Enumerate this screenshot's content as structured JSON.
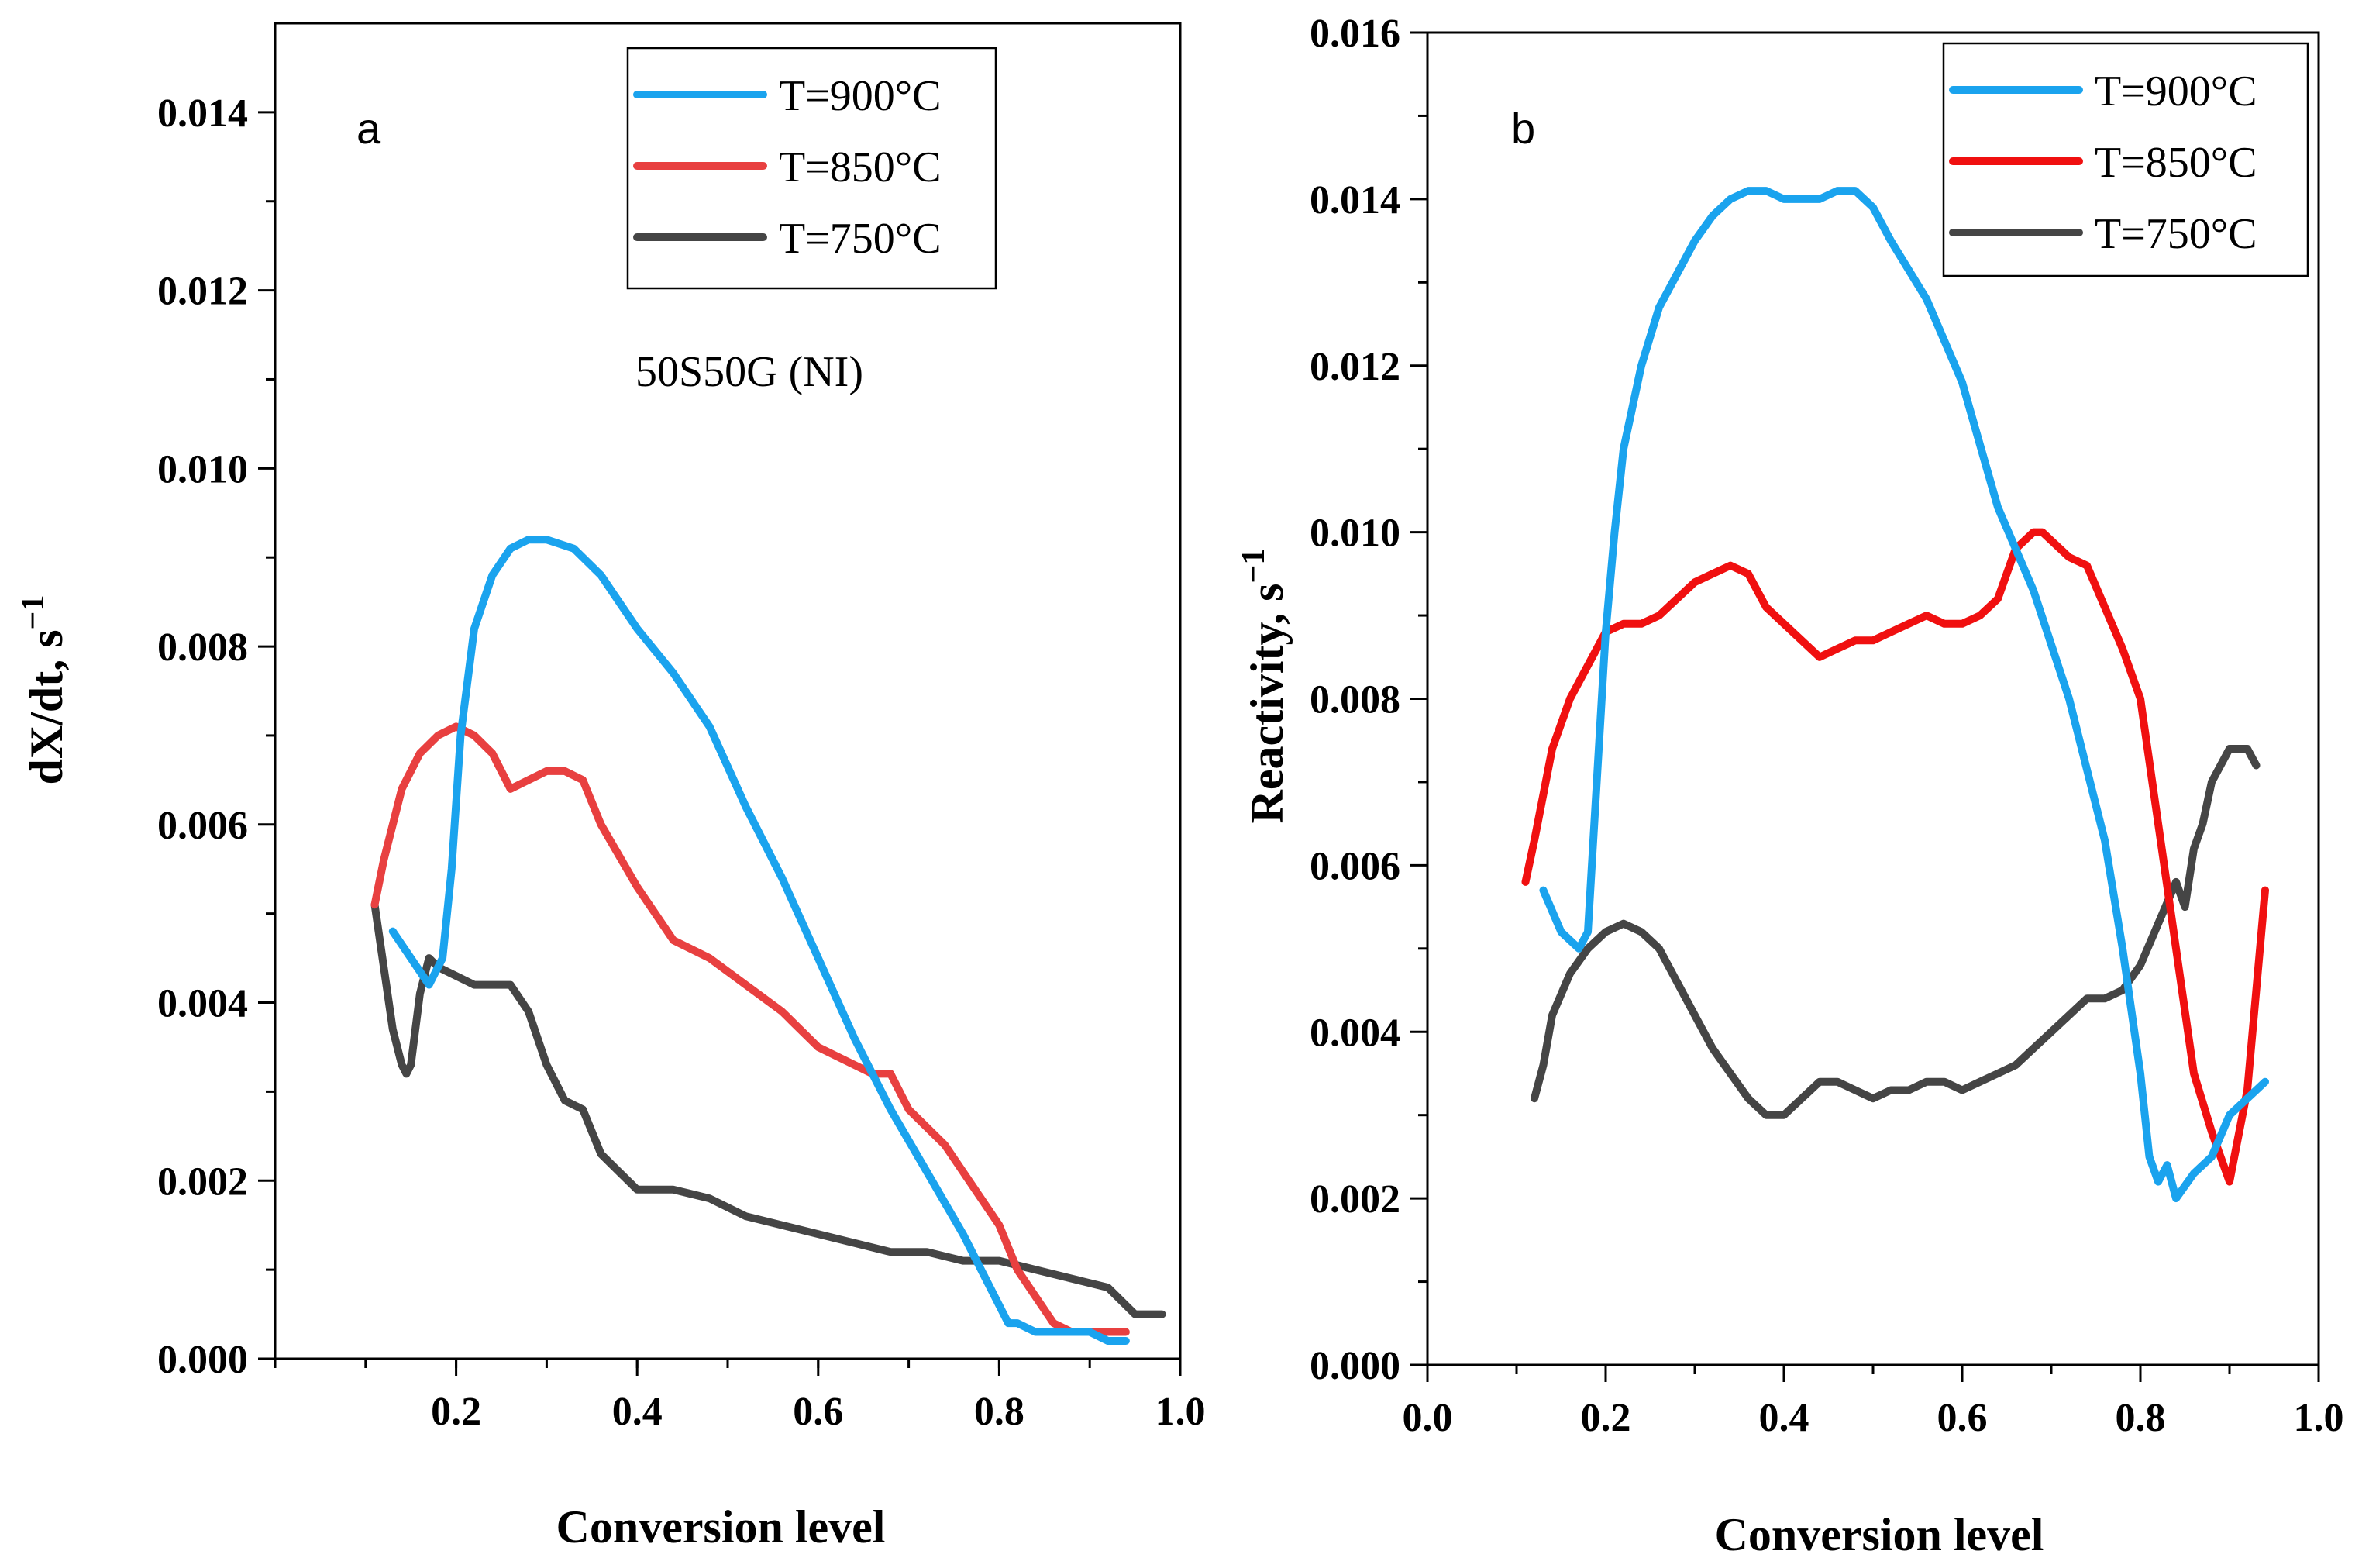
{
  "chart_data": [
    {
      "type": "line",
      "panel_label": "a",
      "annotation": "50S50G (NI)",
      "xlabel": "Conversion level",
      "ylabel": "dX/dt, s",
      "ylabel_sup": "−1",
      "xlim": [
        0.0,
        1.0
      ],
      "ylim": [
        0.0,
        0.015
      ],
      "xticks": [
        0.2,
        0.4,
        0.6,
        0.8,
        1.0
      ],
      "xtick_labels": [
        "0.2",
        "0.4",
        "0.6",
        "0.8",
        "1.0"
      ],
      "yticks": [
        0.0,
        0.002,
        0.004,
        0.006,
        0.008,
        0.01,
        0.012,
        0.014
      ],
      "ytick_labels": [
        "0.000",
        "0.002",
        "0.004",
        "0.006",
        "0.008",
        "0.010",
        "0.012",
        "0.014"
      ],
      "legend_position": "top-right",
      "series": [
        {
          "name": "T=900°C",
          "color": "#1aa3ee",
          "x": [
            0.13,
            0.15,
            0.17,
            0.185,
            0.195,
            0.205,
            0.22,
            0.24,
            0.26,
            0.28,
            0.3,
            0.33,
            0.36,
            0.4,
            0.44,
            0.48,
            0.52,
            0.56,
            0.6,
            0.64,
            0.68,
            0.72,
            0.76,
            0.78,
            0.8,
            0.81,
            0.82,
            0.84,
            0.86,
            0.88,
            0.9,
            0.92,
            0.94
          ],
          "y": [
            0.0048,
            0.0045,
            0.0042,
            0.0045,
            0.0055,
            0.007,
            0.0082,
            0.0088,
            0.0091,
            0.0092,
            0.0092,
            0.0091,
            0.0088,
            0.0082,
            0.0077,
            0.0071,
            0.0062,
            0.0054,
            0.0045,
            0.0036,
            0.0028,
            0.0021,
            0.0014,
            0.001,
            0.0006,
            0.0004,
            0.0004,
            0.0003,
            0.0003,
            0.0003,
            0.0003,
            0.0002,
            0.0002
          ]
        },
        {
          "name": "T=850°C",
          "color": "#e84040",
          "x": [
            0.11,
            0.12,
            0.14,
            0.16,
            0.18,
            0.2,
            0.22,
            0.24,
            0.26,
            0.28,
            0.3,
            0.32,
            0.34,
            0.36,
            0.4,
            0.44,
            0.48,
            0.52,
            0.56,
            0.6,
            0.64,
            0.66,
            0.68,
            0.7,
            0.74,
            0.78,
            0.8,
            0.82,
            0.84,
            0.86,
            0.88,
            0.9,
            0.92,
            0.94
          ],
          "y": [
            0.0051,
            0.0056,
            0.0064,
            0.0068,
            0.007,
            0.0071,
            0.007,
            0.0068,
            0.0064,
            0.0065,
            0.0066,
            0.0066,
            0.0065,
            0.006,
            0.0053,
            0.0047,
            0.0045,
            0.0042,
            0.0039,
            0.0035,
            0.0033,
            0.0032,
            0.0032,
            0.0028,
            0.0024,
            0.0018,
            0.0015,
            0.001,
            0.0007,
            0.0004,
            0.0003,
            0.0003,
            0.0003,
            0.0003
          ]
        },
        {
          "name": "T=750°C",
          "color": "#454545",
          "x": [
            0.11,
            0.12,
            0.13,
            0.14,
            0.145,
            0.15,
            0.16,
            0.17,
            0.18,
            0.2,
            0.22,
            0.24,
            0.26,
            0.28,
            0.3,
            0.32,
            0.34,
            0.36,
            0.38,
            0.4,
            0.44,
            0.48,
            0.52,
            0.56,
            0.6,
            0.64,
            0.68,
            0.72,
            0.76,
            0.8,
            0.84,
            0.88,
            0.92,
            0.95,
            0.98
          ],
          "y": [
            0.0051,
            0.0044,
            0.0037,
            0.0033,
            0.0032,
            0.0033,
            0.0041,
            0.0045,
            0.0044,
            0.0043,
            0.0042,
            0.0042,
            0.0042,
            0.0039,
            0.0033,
            0.0029,
            0.0028,
            0.0023,
            0.0021,
            0.0019,
            0.0019,
            0.0018,
            0.0016,
            0.0015,
            0.0014,
            0.0013,
            0.0012,
            0.0012,
            0.0011,
            0.0011,
            0.001,
            0.0009,
            0.0008,
            0.0005,
            0.0005
          ]
        }
      ]
    },
    {
      "type": "line",
      "panel_label": "b",
      "xlabel": "Conversion level",
      "ylabel": "Reactivity, s",
      "ylabel_sup": "−1",
      "xlim": [
        0.0,
        1.0
      ],
      "ylim": [
        0.0,
        0.016
      ],
      "xticks": [
        0.0,
        0.2,
        0.4,
        0.6,
        0.8,
        1.0
      ],
      "xtick_labels": [
        "0.0",
        "0.2",
        "0.4",
        "0.6",
        "0.8",
        "1.0"
      ],
      "yticks": [
        0.0,
        0.002,
        0.004,
        0.006,
        0.008,
        0.01,
        0.012,
        0.014,
        0.016
      ],
      "ytick_labels": [
        "0.000",
        "0.002",
        "0.004",
        "0.006",
        "0.008",
        "0.010",
        "0.012",
        "0.014",
        "0.016"
      ],
      "legend_position": "top-right",
      "series": [
        {
          "name": "T=900°C",
          "color": "#1aa3ee",
          "x": [
            0.13,
            0.15,
            0.17,
            0.18,
            0.19,
            0.2,
            0.21,
            0.22,
            0.24,
            0.26,
            0.28,
            0.3,
            0.32,
            0.34,
            0.36,
            0.38,
            0.4,
            0.42,
            0.44,
            0.46,
            0.48,
            0.5,
            0.52,
            0.56,
            0.6,
            0.64,
            0.68,
            0.72,
            0.76,
            0.78,
            0.8,
            0.81,
            0.82,
            0.83,
            0.84,
            0.86,
            0.88,
            0.9,
            0.92,
            0.94
          ],
          "y": [
            0.0057,
            0.0052,
            0.005,
            0.0052,
            0.007,
            0.0088,
            0.01,
            0.011,
            0.012,
            0.0127,
            0.0131,
            0.0135,
            0.0138,
            0.014,
            0.0141,
            0.0141,
            0.014,
            0.014,
            0.014,
            0.0141,
            0.0141,
            0.0139,
            0.0135,
            0.0128,
            0.0118,
            0.0103,
            0.0093,
            0.008,
            0.0063,
            0.005,
            0.0035,
            0.0025,
            0.0022,
            0.0024,
            0.002,
            0.0023,
            0.0025,
            0.003,
            0.0032,
            0.0034
          ]
        },
        {
          "name": "T=850°C",
          "color": "#f01010",
          "x": [
            0.11,
            0.12,
            0.14,
            0.16,
            0.18,
            0.2,
            0.22,
            0.24,
            0.26,
            0.28,
            0.3,
            0.32,
            0.34,
            0.36,
            0.38,
            0.4,
            0.42,
            0.44,
            0.46,
            0.48,
            0.5,
            0.52,
            0.54,
            0.56,
            0.58,
            0.6,
            0.62,
            0.64,
            0.66,
            0.68,
            0.69,
            0.7,
            0.72,
            0.74,
            0.76,
            0.78,
            0.8,
            0.82,
            0.84,
            0.86,
            0.88,
            0.89,
            0.9,
            0.92,
            0.94
          ],
          "y": [
            0.0058,
            0.0063,
            0.0074,
            0.008,
            0.0084,
            0.0088,
            0.0089,
            0.0089,
            0.009,
            0.0092,
            0.0094,
            0.0095,
            0.0096,
            0.0095,
            0.0091,
            0.0089,
            0.0087,
            0.0085,
            0.0086,
            0.0087,
            0.0087,
            0.0088,
            0.0089,
            0.009,
            0.0089,
            0.0089,
            0.009,
            0.0092,
            0.0098,
            0.01,
            0.01,
            0.0099,
            0.0097,
            0.0096,
            0.0091,
            0.0086,
            0.008,
            0.0065,
            0.005,
            0.0035,
            0.0028,
            0.0025,
            0.0022,
            0.0033,
            0.0057
          ]
        },
        {
          "name": "T=750°C",
          "color": "#454545",
          "x": [
            0.12,
            0.13,
            0.14,
            0.16,
            0.18,
            0.2,
            0.22,
            0.24,
            0.26,
            0.28,
            0.3,
            0.32,
            0.34,
            0.36,
            0.38,
            0.4,
            0.42,
            0.44,
            0.46,
            0.48,
            0.5,
            0.52,
            0.54,
            0.56,
            0.58,
            0.6,
            0.62,
            0.64,
            0.66,
            0.68,
            0.7,
            0.72,
            0.74,
            0.76,
            0.78,
            0.8,
            0.82,
            0.84,
            0.85,
            0.86,
            0.87,
            0.88,
            0.9,
            0.92,
            0.93
          ],
          "y": [
            0.0032,
            0.0036,
            0.0042,
            0.0047,
            0.005,
            0.0052,
            0.0053,
            0.0052,
            0.005,
            0.0046,
            0.0042,
            0.0038,
            0.0035,
            0.0032,
            0.003,
            0.003,
            0.0032,
            0.0034,
            0.0034,
            0.0033,
            0.0032,
            0.0033,
            0.0033,
            0.0034,
            0.0034,
            0.0033,
            0.0034,
            0.0035,
            0.0036,
            0.0038,
            0.004,
            0.0042,
            0.0044,
            0.0044,
            0.0045,
            0.0048,
            0.0053,
            0.0058,
            0.0055,
            0.0062,
            0.0065,
            0.007,
            0.0074,
            0.0074,
            0.0072
          ]
        }
      ]
    }
  ]
}
